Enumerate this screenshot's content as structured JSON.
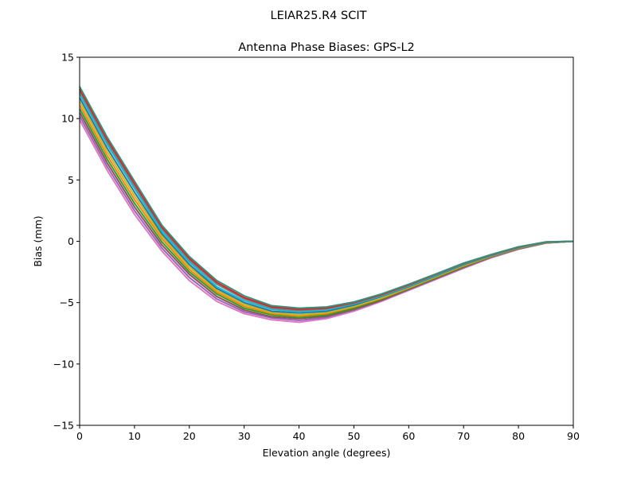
{
  "suptitle": "LEIAR25.R4       SCIT",
  "chart_data": {
    "type": "line",
    "title": "Antenna Phase Biases: GPS-L2",
    "xlabel": "Elevation angle (degrees)",
    "ylabel": "Bias (mm)",
    "xlim": [
      0,
      90
    ],
    "ylim": [
      -15,
      15
    ],
    "xticks": [
      0,
      10,
      20,
      30,
      40,
      50,
      60,
      70,
      80,
      90
    ],
    "xtick_labels": [
      "0",
      "10",
      "20",
      "30",
      "40",
      "50",
      "60",
      "70",
      "80",
      "90"
    ],
    "yticks": [
      -15,
      -10,
      -5,
      0,
      5,
      10,
      15
    ],
    "ytick_labels": [
      "−15",
      "−10",
      "−5",
      "0",
      "5",
      "10",
      "15"
    ],
    "grid": false,
    "legend": "none",
    "x": [
      0,
      5,
      10,
      15,
      20,
      25,
      30,
      35,
      40,
      45,
      50,
      55,
      60,
      65,
      70,
      75,
      80,
      85,
      90
    ],
    "series_note_count": 11,
    "series": [
      {
        "color": "#e377c2",
        "values": [
          9.9,
          5.8,
          2.2,
          -0.8,
          -3.2,
          -4.9,
          -5.9,
          -6.4,
          -6.6,
          -6.3,
          -5.7,
          -4.9,
          -4.0,
          -3.1,
          -2.2,
          -1.35,
          -0.65,
          -0.15,
          0
        ]
      },
      {
        "color": "#9467bd",
        "values": [
          10.2,
          6.1,
          2.5,
          -0.55,
          -2.95,
          -4.7,
          -5.75,
          -6.25,
          -6.45,
          -6.2,
          -5.6,
          -4.85,
          -3.95,
          -3.05,
          -2.15,
          -1.3,
          -0.63,
          -0.14,
          0
        ]
      },
      {
        "color": "#8c564b",
        "values": [
          10.5,
          6.4,
          2.8,
          -0.3,
          -2.7,
          -4.5,
          -5.6,
          -6.15,
          -6.3,
          -6.1,
          -5.55,
          -4.8,
          -3.9,
          -3.0,
          -2.1,
          -1.28,
          -0.6,
          -0.13,
          0
        ]
      },
      {
        "color": "#2ca02c",
        "values": [
          10.8,
          6.7,
          3.1,
          -0.05,
          -2.5,
          -4.3,
          -5.45,
          -6.0,
          -6.2,
          -6.0,
          -5.45,
          -4.7,
          -3.85,
          -2.95,
          -2.05,
          -1.25,
          -0.58,
          -0.12,
          0
        ]
      },
      {
        "color": "#ff7f0e",
        "values": [
          11.1,
          7.0,
          3.4,
          0.2,
          -2.3,
          -4.15,
          -5.3,
          -5.9,
          -6.1,
          -5.9,
          -5.35,
          -4.65,
          -3.8,
          -2.9,
          -2.0,
          -1.22,
          -0.56,
          -0.11,
          0
        ]
      },
      {
        "color": "#bcbd22",
        "values": [
          11.4,
          7.3,
          3.7,
          0.4,
          -2.1,
          -4.0,
          -5.15,
          -5.8,
          -6.0,
          -5.8,
          -5.3,
          -4.6,
          -3.75,
          -2.85,
          -1.95,
          -1.2,
          -0.54,
          -0.1,
          0
        ]
      },
      {
        "color": "#1f77b4",
        "values": [
          11.7,
          7.6,
          4.0,
          0.6,
          -1.9,
          -3.85,
          -5.0,
          -5.7,
          -5.85,
          -5.7,
          -5.2,
          -4.5,
          -3.7,
          -2.8,
          -1.9,
          -1.17,
          -0.52,
          -0.09,
          0
        ]
      },
      {
        "color": "#17becf",
        "values": [
          12.0,
          7.9,
          4.3,
          0.8,
          -1.7,
          -3.7,
          -4.85,
          -5.55,
          -5.75,
          -5.6,
          -5.1,
          -4.45,
          -3.65,
          -2.75,
          -1.85,
          -1.14,
          -0.5,
          -0.08,
          0
        ]
      },
      {
        "color": "#7f7f7f",
        "values": [
          12.2,
          8.1,
          4.5,
          1.0,
          -1.55,
          -3.5,
          -4.7,
          -5.45,
          -5.65,
          -5.5,
          -5.05,
          -4.4,
          -3.6,
          -2.7,
          -1.82,
          -1.12,
          -0.48,
          -0.07,
          0
        ]
      },
      {
        "color": "#d62728",
        "values": [
          12.4,
          8.3,
          4.7,
          1.15,
          -1.4,
          -3.35,
          -4.6,
          -5.35,
          -5.55,
          -5.45,
          -5.0,
          -4.35,
          -3.55,
          -2.68,
          -1.8,
          -1.1,
          -0.47,
          -0.06,
          0
        ]
      },
      {
        "color": "#3a8f7a",
        "values": [
          12.6,
          8.5,
          4.9,
          1.3,
          -1.25,
          -3.2,
          -4.45,
          -5.25,
          -5.45,
          -5.35,
          -4.95,
          -4.3,
          -3.5,
          -2.65,
          -1.78,
          -1.08,
          -0.45,
          -0.05,
          0
        ]
      }
    ]
  }
}
